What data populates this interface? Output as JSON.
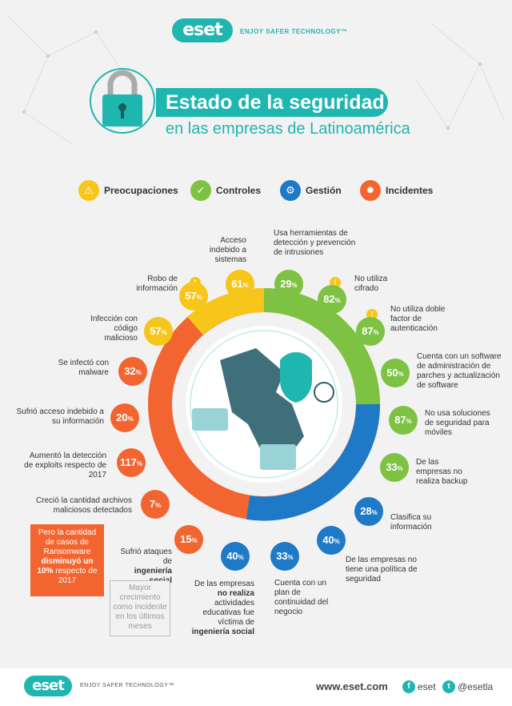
{
  "header": {
    "logo": "eset",
    "tagline": "ENJOY SAFER TECHNOLOGY™",
    "title": "Estado de la seguridad",
    "subtitle": "en las empresas de Latinoamérica"
  },
  "legend": [
    {
      "label": "Preocupaciones",
      "icon": "warning-icon",
      "color": "#f6c61a"
    },
    {
      "label": "Controles",
      "icon": "checkbox-icon",
      "color": "#7dc242"
    },
    {
      "label": "Gestión",
      "icon": "gear-icon",
      "color": "#1e7ac6"
    },
    {
      "label": "Incidentes",
      "icon": "virus-icon",
      "color": "#f26531"
    }
  ],
  "stats": {
    "acceso": {
      "value": "61",
      "label": "Acceso indebido a sistemas"
    },
    "herramientas": {
      "value": "29",
      "label": "Usa herramientas de detección y prevención de intrusiones"
    },
    "robo": {
      "value": "57",
      "label": "Robo de información"
    },
    "cifrado": {
      "value": "82",
      "label": "No utiliza cifrado"
    },
    "infeccion": {
      "value": "57",
      "label": "Infección con código malicioso"
    },
    "doble": {
      "value": "87",
      "label": "No utiliza doble factor de autenticación"
    },
    "malware": {
      "value": "32",
      "label": "Se infectó con malware"
    },
    "parches": {
      "value": "50",
      "label": "Cuenta con un software de administración de parches y actualización de software"
    },
    "acceso_info": {
      "value": "20",
      "label": "Sufrió acceso indebido a su información"
    },
    "moviles": {
      "value": "87",
      "label": "No usa soluciones de seguridad para móviles"
    },
    "exploits": {
      "value": "117",
      "label": "Aumentó la detección de exploits respecto de 2017"
    },
    "backup": {
      "value": "33",
      "label": "De las empresas no realiza backup"
    },
    "archivos": {
      "value": "7",
      "label": "Creció la cantidad archivos maliciosos detectados"
    },
    "clasifica": {
      "value": "28",
      "label": "Clasifica su información"
    },
    "ingenieria": {
      "value": "15",
      "label_a": "Sufrió ataques de",
      "label_b": "ingeniería social"
    },
    "educativas": {
      "value": "40",
      "label_a": "De las empresas",
      "label_b": "no realiza",
      "label_c": "actividades educativas fue víctima de",
      "label_d": "ingeniería social"
    },
    "continuidad": {
      "value": "33",
      "label": "Cuenta con un plan de continuidad del negocio"
    },
    "politica": {
      "value": "40",
      "label": "De las empresas no tiene una política de seguridad"
    }
  },
  "percent_sign": "%",
  "note_red": {
    "a": "Pero la cantidad de casos de Ransomware",
    "b": "disminuyó un 10%",
    "c": "respecto de 2017"
  },
  "note_box": "Mayor crecimiento como incidente en los últimos meses",
  "footer": {
    "logo": "eset",
    "tagline": "ENJOY SAFER TECHNOLOGY™",
    "website": "www.eset.com",
    "facebook": "eset",
    "twitter": "@esetla"
  }
}
